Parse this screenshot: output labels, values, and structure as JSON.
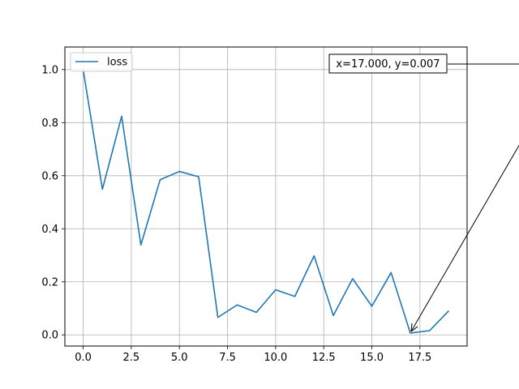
{
  "chart_data": {
    "type": "line",
    "title": "",
    "xlabel": "",
    "ylabel": "",
    "xlim": [
      -0.95,
      19.95
    ],
    "ylim": [
      -0.042,
      1.085
    ],
    "grid": true,
    "x_ticks": [
      0.0,
      2.5,
      5.0,
      7.5,
      10.0,
      12.5,
      15.0,
      17.5
    ],
    "x_tick_labels": [
      "0.0",
      "2.5",
      "5.0",
      "7.5",
      "10.0",
      "12.5",
      "15.0",
      "17.5"
    ],
    "y_ticks": [
      0.0,
      0.2,
      0.4,
      0.6,
      0.8,
      1.0
    ],
    "y_tick_labels": [
      "0.0",
      "0.2",
      "0.4",
      "0.6",
      "0.8",
      "1.0"
    ],
    "legend_position": "top-left",
    "series": [
      {
        "name": "loss",
        "color": "#1f77b4",
        "x": [
          0,
          1,
          2,
          3,
          4,
          5,
          6,
          7,
          8,
          9,
          10,
          11,
          12,
          13,
          14,
          15,
          16,
          17,
          18,
          19
        ],
        "values": [
          1.0,
          0.549,
          0.824,
          0.339,
          0.585,
          0.616,
          0.596,
          0.066,
          0.113,
          0.085,
          0.17,
          0.145,
          0.298,
          0.073,
          0.212,
          0.108,
          0.235,
          0.007,
          0.016,
          0.091
        ]
      }
    ],
    "annotation": {
      "text": "x=17.000, y=0.007",
      "point": [
        17.0,
        0.007
      ]
    }
  }
}
